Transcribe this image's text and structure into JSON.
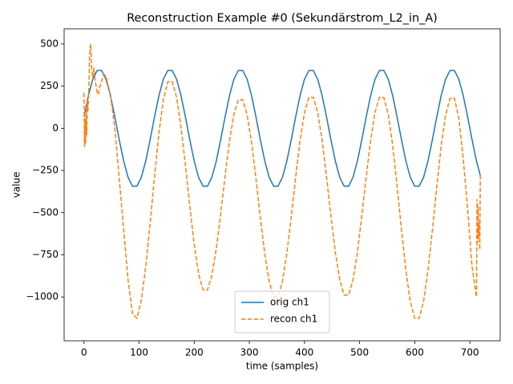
{
  "chart_data": {
    "type": "line",
    "title": "Reconstruction Example #0 (Sekundärstrom_L2_in_A)",
    "xlabel": "time (samples)",
    "ylabel": "value",
    "xlim": [
      -36,
      755
    ],
    "ylim": [
      -1260,
      590
    ],
    "xticks": [
      0,
      100,
      200,
      300,
      400,
      500,
      600,
      700
    ],
    "yticks": [
      {
        "value": 500,
        "label": "500"
      },
      {
        "value": 250,
        "label": "250"
      },
      0,
      {
        "value": -250,
        "label": "−250"
      },
      {
        "value": -500,
        "label": "−500"
      },
      {
        "value": -750,
        "label": "−750"
      },
      {
        "value": -1000,
        "label": "−1000"
      }
    ],
    "legend": "lower center",
    "series": [
      {
        "name": "orig ch1",
        "color": "#1f77b4",
        "linestyle": "solid",
        "x": [
          0,
          8,
          16,
          24,
          32,
          40,
          48,
          56,
          64,
          72,
          80,
          88,
          96,
          104,
          112,
          120,
          128,
          136,
          144,
          152,
          160,
          168,
          176,
          184,
          192,
          200,
          208,
          216,
          224,
          232,
          240,
          248,
          256,
          264,
          272,
          280,
          288,
          296,
          304,
          312,
          320,
          328,
          336,
          344,
          352,
          360,
          368,
          376,
          384,
          392,
          400,
          408,
          416,
          424,
          432,
          440,
          448,
          456,
          464,
          472,
          480,
          488,
          496,
          504,
          512,
          520,
          528,
          536,
          544,
          552,
          560,
          568,
          576,
          584,
          592,
          600,
          608,
          616,
          624,
          632,
          640,
          648,
          656,
          664,
          672,
          680,
          688,
          696,
          704,
          712,
          719
        ],
        "values": [
          68,
          194,
          291,
          343,
          343,
          291,
          194,
          68,
          -68,
          -194,
          -291,
          -343,
          -343,
          -291,
          -194,
          -68,
          68,
          194,
          291,
          343,
          343,
          291,
          194,
          68,
          -68,
          -194,
          -291,
          -343,
          -343,
          -291,
          -194,
          -68,
          68,
          194,
          291,
          343,
          343,
          291,
          194,
          68,
          -68,
          -194,
          -291,
          -343,
          -343,
          -291,
          -194,
          -68,
          68,
          194,
          291,
          343,
          343,
          291,
          194,
          68,
          -68,
          -194,
          -291,
          -343,
          -343,
          -291,
          -194,
          -68,
          68,
          194,
          291,
          343,
          343,
          291,
          194,
          68,
          -68,
          -194,
          -291,
          -343,
          -343,
          -291,
          -194,
          -68,
          68,
          194,
          291,
          343,
          343,
          291,
          194,
          68,
          -68,
          -194,
          -280
        ]
      },
      {
        "name": "recon ch1",
        "color": "#ff7f0e",
        "linestyle": "dashed",
        "x": [
          0,
          1,
          2,
          3,
          4,
          5,
          6,
          7,
          8,
          9,
          10,
          11,
          12,
          13,
          14,
          16,
          18,
          20,
          22,
          24,
          26,
          28,
          32,
          36,
          40,
          44,
          48,
          56,
          64,
          72,
          80,
          88,
          96,
          104,
          112,
          120,
          128,
          136,
          144,
          152,
          160,
          168,
          176,
          184,
          192,
          200,
          208,
          216,
          224,
          232,
          240,
          248,
          256,
          264,
          272,
          280,
          288,
          296,
          304,
          312,
          320,
          328,
          336,
          344,
          352,
          360,
          368,
          376,
          384,
          392,
          400,
          408,
          416,
          424,
          432,
          440,
          448,
          456,
          464,
          472,
          480,
          488,
          496,
          504,
          512,
          520,
          528,
          536,
          544,
          552,
          560,
          568,
          576,
          584,
          592,
          600,
          608,
          616,
          624,
          632,
          640,
          648,
          656,
          664,
          672,
          680,
          688,
          696,
          704,
          712,
          713,
          714,
          715,
          716,
          717,
          718,
          719
        ],
        "values": [
          210,
          -110,
          60,
          -90,
          130,
          -40,
          170,
          100,
          160,
          250,
          420,
          470,
          500,
          440,
          350,
          300,
          360,
          290,
          250,
          210,
          200,
          240,
          280,
          320,
          310,
          250,
          200,
          0,
          -300,
          -600,
          -900,
          -1100,
          -1126,
          -1019,
          -823,
          -564,
          -286,
          -27,
          169,
          276,
          278,
          184,
          10,
          -217,
          -463,
          -690,
          -864,
          -958,
          -959,
          -873,
          -715,
          -507,
          -283,
          -75,
          83,
          169,
          169,
          79,
          -84,
          -299,
          -531,
          -746,
          -909,
          -999,
          -999,
          -908,
          -742,
          -525,
          -290,
          -73,
          93,
          183,
          184,
          94,
          -70,
          -286,
          -519,
          -735,
          -899,
          -989,
          -989,
          -899,
          -735,
          -519,
          -286,
          -70,
          94,
          184,
          182,
          82,
          -101,
          -342,
          -603,
          -844,
          -1027,
          -1128,
          -1127,
          -1028,
          -845,
          -605,
          -345,
          -105,
          78,
          177,
          179,
          60,
          -180,
          -480,
          -820,
          -1000,
          -420,
          -680,
          -460,
          -650,
          -560,
          -720,
          -280
        ]
      }
    ]
  }
}
